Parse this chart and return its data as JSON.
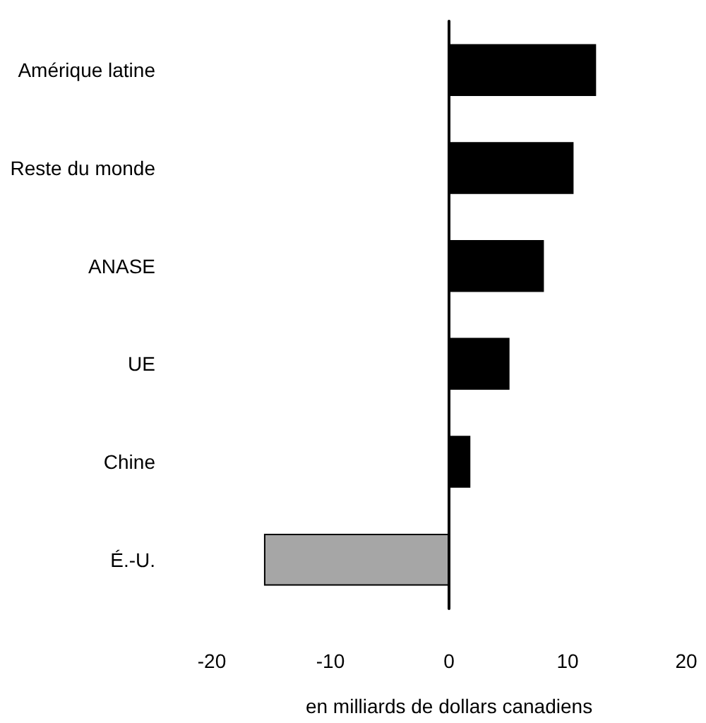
{
  "chart_data": {
    "type": "bar",
    "orientation": "horizontal",
    "xlabel": "en milliards de dollars canadiens",
    "categories": [
      "Amérique latine",
      "Reste du monde",
      "ANASE",
      "UE",
      "Chine",
      "É.-U."
    ],
    "values": [
      12.4,
      10.5,
      8.0,
      5.1,
      1.8,
      -15.6
    ],
    "colors": [
      "#000000",
      "#000000",
      "#000000",
      "#000000",
      "#000000",
      "#a6a6a6"
    ],
    "xlim": [
      -20,
      20
    ],
    "xticks": [
      -20,
      -10,
      0,
      10,
      20
    ]
  }
}
